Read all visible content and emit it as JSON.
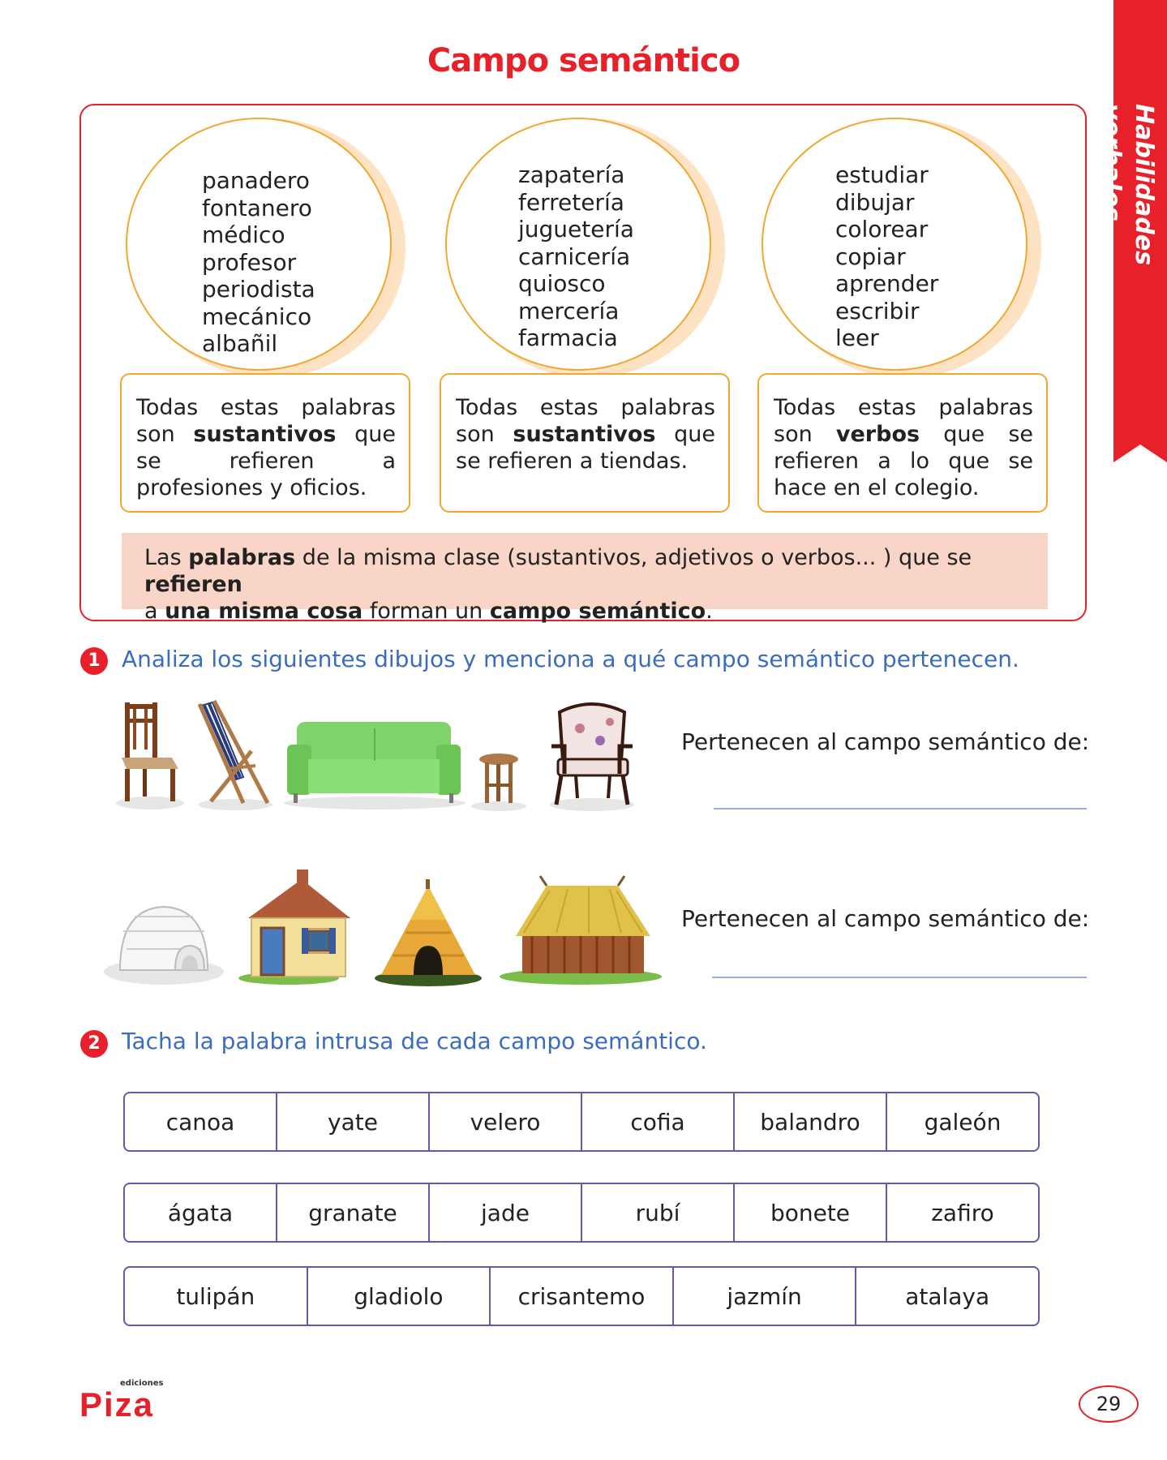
{
  "title": "Campo semántico",
  "side_tab": {
    "label": "Habilidades verbales",
    "color": "#e8202a"
  },
  "groups": [
    {
      "words": [
        "panadero",
        "fontanero",
        "médico",
        "profesor",
        "periodista",
        "mecánico",
        "albañil"
      ],
      "desc": {
        "pre": "Todas estas palabras son ",
        "bold": "sustantivos",
        "post": " que se refieren a profesiones y oficios."
      }
    },
    {
      "words": [
        "zapatería",
        "ferretería",
        "juguetería",
        "carnicería",
        "quiosco",
        "mercería",
        "farmacia"
      ],
      "desc": {
        "pre": "Todas estas palabras son ",
        "bold": "sustantivos",
        "post": " que se refieren a tiendas."
      }
    },
    {
      "words": [
        "estudiar",
        "dibujar",
        "colorear",
        "copiar",
        "aprender",
        "escribir",
        "leer"
      ],
      "desc": {
        "pre": "Todas estas palabras son ",
        "bold": "verbos",
        "post": " que se refieren a lo que se hace en el colegio."
      }
    }
  ],
  "rule": {
    "p1": "Las ",
    "b1": "palabras",
    "p2": " de la misma clase (sustantivos, adjetivos o verbos... ) que se ",
    "b2": "refieren",
    "p3": " a ",
    "b3": "una misma cosa",
    "p4": " forman un ",
    "b4": "campo semántico",
    "p5": "."
  },
  "exercise1": {
    "number": "1",
    "instruction": "Analiza los siguientes dibujos y menciona a qué campo semántico pertenecen.",
    "rows": [
      {
        "label": "Pertenecen al campo semántico de:",
        "answer": "",
        "images": [
          "chair",
          "deck-chair",
          "sofa",
          "stool",
          "armchair"
        ]
      },
      {
        "label": "Pertenecen al campo semántico de:",
        "answer": "",
        "images": [
          "igloo",
          "house",
          "hut",
          "thatched-cabin"
        ]
      }
    ]
  },
  "exercise2": {
    "number": "2",
    "instruction": "Tacha la palabra intrusa de cada campo semántico.",
    "rows": [
      [
        "canoa",
        "yate",
        "velero",
        "cofia",
        "balandro",
        "galeón"
      ],
      [
        "ágata",
        "granate",
        "jade",
        "rubí",
        "bonete",
        "zafiro"
      ],
      [
        "tulipán",
        "gladiolo",
        "crisantemo",
        "jazmín",
        "atalaya"
      ]
    ]
  },
  "footer": {
    "logo_small": "ediciones",
    "logo": "Piza",
    "page_number": "29"
  },
  "colors": {
    "accent": "#e8202a",
    "circle_border": "#f0a830",
    "rule_bg": "#f9d5c8",
    "instruction": "#3a6cc0",
    "table_border": "#6a55a8"
  }
}
